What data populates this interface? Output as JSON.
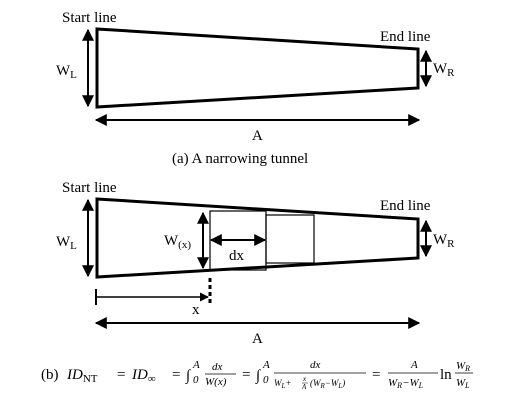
{
  "panel_a": {
    "start_label": "Start line",
    "end_label": "End line",
    "wl": {
      "main": "W",
      "sub": "L"
    },
    "wr": {
      "main": "W",
      "sub": "R"
    },
    "length": "A",
    "caption": "(a) A narrowing tunnel"
  },
  "panel_b": {
    "start_label": "Start line",
    "end_label": "End line",
    "wl": {
      "main": "W",
      "sub": "L"
    },
    "wr": {
      "main": "W",
      "sub": "R"
    },
    "wx": {
      "main": "W",
      "sub": "(x)"
    },
    "dx": "dx",
    "x": "x",
    "length": "A"
  },
  "formula": {
    "prefix": "(b)",
    "id": "ID",
    "nt": "NT",
    "inf": "∞",
    "int_sym": "∫",
    "int_upper": "A",
    "int_lower": "0",
    "dx": "dx",
    "wx_den": "W(x)",
    "den2_w": "W",
    "den2_l": "L",
    "den2_plus": "+",
    "den2_x": "x",
    "den2_a": "A",
    "den2_paren": "(W",
    "den2_r": "R",
    "den2_minus": "−W",
    "den2_close": ")",
    "final_num": "A",
    "final_den": "W",
    "ln": "ln",
    "eq": "="
  }
}
